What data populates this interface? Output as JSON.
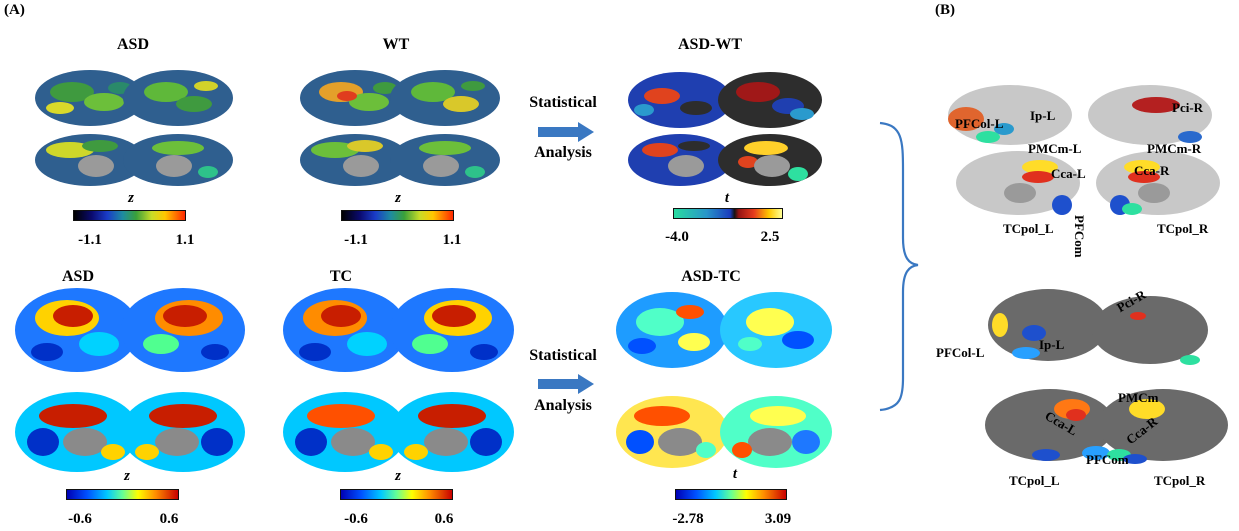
{
  "panel_a_label": "(A)",
  "panel_b_label": "(B)",
  "row1": {
    "titles": [
      "ASD",
      "WT",
      "ASD-WT"
    ],
    "cbar_symbols": [
      "z",
      "z",
      "t"
    ],
    "ticks": [
      [
        "-1.1",
        "1.1"
      ],
      [
        "-1.1",
        "1.1"
      ],
      [
        "-4.0",
        "2.5"
      ]
    ]
  },
  "row2": {
    "titles": [
      "ASD",
      "TC",
      "ASD-TC"
    ],
    "cbar_symbols": [
      "z",
      "z",
      "t"
    ],
    "ticks": [
      [
        "-0.6",
        "0.6"
      ],
      [
        "-0.6",
        "0.6"
      ],
      [
        "-2.78",
        "3.09"
      ]
    ]
  },
  "statistical_line1": "Statistical",
  "statistical_line2": "Analysis",
  "panel_b": {
    "top_labels": [
      "Pci-R",
      "PFCol-L",
      "Ip-L",
      "PMCm-L",
      "PMCm-R",
      "Cca-L",
      "Cca-R",
      "PFCom",
      "TCpol_L",
      "TCpol_R"
    ],
    "bottom_labels": [
      "Pci-R",
      "PFCol-L",
      "Ip-L",
      "PMCm",
      "Cca-L",
      "Cca-R",
      "PFCom",
      "TCpol_L",
      "TCpol_R"
    ]
  },
  "colors": {
    "accent_arrow": "#3a78c2",
    "brace": "#3a78c2",
    "cortex_gray": "#8a8a8a",
    "cortex_dark": "#5e5e5e"
  }
}
